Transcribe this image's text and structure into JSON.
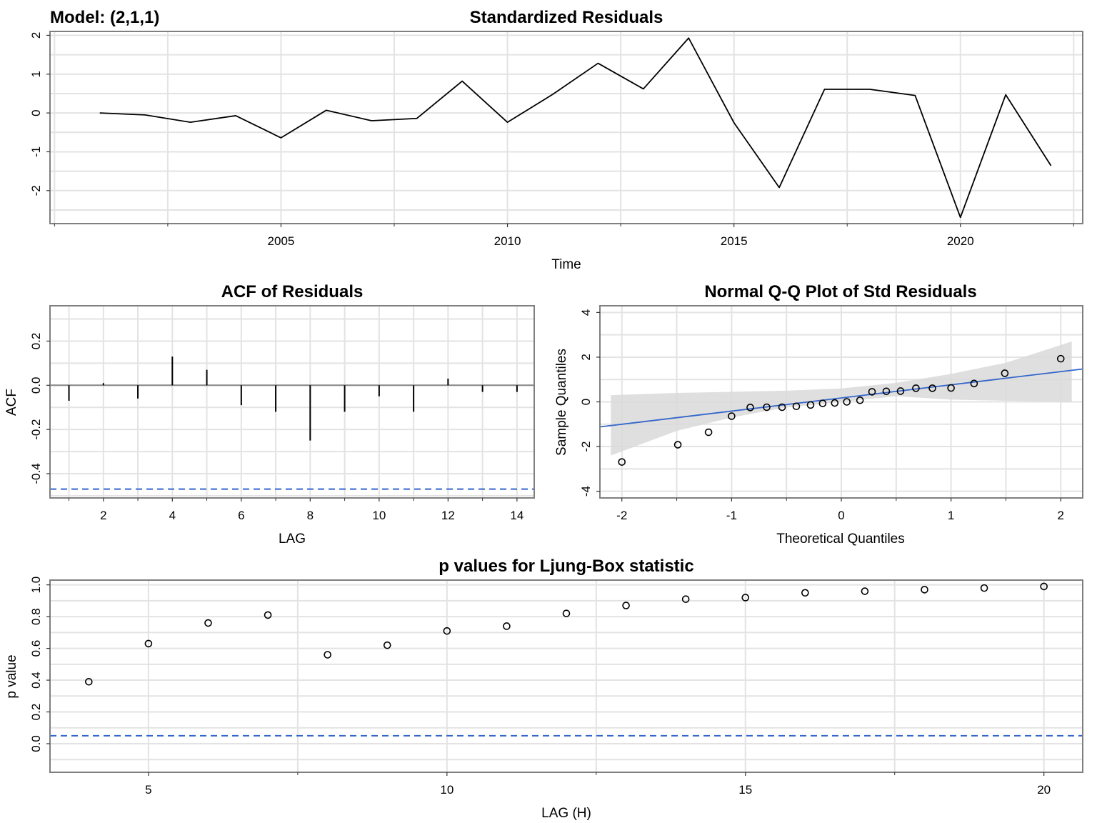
{
  "model_label": "Model: (2,1,1)",
  "chart_data": [
    {
      "type": "line",
      "title": "Standardized Residuals",
      "xlabel": "Time",
      "ylabel": "",
      "x": [
        2001,
        2002,
        2003,
        2004,
        2005,
        2006,
        2007,
        2008,
        2009,
        2010,
        2011,
        2012,
        2013,
        2014,
        2015,
        2016,
        2017,
        2018,
        2019,
        2020,
        2021,
        2022
      ],
      "series": [
        {
          "values": [
            0.0,
            -0.05,
            -0.24,
            -0.07,
            -0.64,
            0.07,
            -0.2,
            -0.14,
            0.82,
            -0.24,
            0.48,
            1.28,
            0.62,
            1.93,
            -0.25,
            -1.92,
            0.61,
            0.61,
            0.45,
            -2.69,
            0.47,
            -1.36
          ]
        }
      ],
      "xticks": [
        "2005",
        "2010",
        "2015",
        "2020"
      ],
      "yticks": [
        "-2",
        "-1",
        "0",
        "1",
        "2"
      ],
      "xlim": [
        1999.9,
        2022.7
      ],
      "ylim": [
        -2.85,
        2.1
      ],
      "grid": true,
      "line_color": "#000000"
    },
    {
      "type": "bar",
      "title": "ACF of Residuals",
      "xlabel": "LAG",
      "ylabel": "ACF",
      "x": [
        1,
        2,
        3,
        4,
        5,
        6,
        7,
        8,
        9,
        10,
        11,
        12,
        13,
        14
      ],
      "values": [
        -0.07,
        0.01,
        -0.06,
        0.13,
        0.07,
        -0.09,
        -0.12,
        -0.25,
        -0.12,
        -0.05,
        -0.12,
        0.03,
        -0.03,
        -0.03
      ],
      "xticks": [
        "2",
        "4",
        "6",
        "8",
        "10",
        "12",
        "14"
      ],
      "yticks": [
        "-0.4",
        "-0.2",
        "0.0",
        "0.2"
      ],
      "xlim": [
        0.45,
        14.5
      ],
      "ylim": [
        -0.51,
        0.36
      ],
      "significance_line": -0.47,
      "significance_color": "#3366cc",
      "grid": true
    },
    {
      "type": "scatter",
      "title": "Normal Q-Q Plot of Std Residuals",
      "xlabel": "Theoretical Quantiles",
      "ylabel": "Sample Quantiles",
      "points": [
        [
          -2.0,
          -2.69
        ],
        [
          -1.49,
          -1.92
        ],
        [
          -1.21,
          -1.36
        ],
        [
          -1.0,
          -0.64
        ],
        [
          -0.83,
          -0.25
        ],
        [
          -0.68,
          -0.24
        ],
        [
          -0.54,
          -0.24
        ],
        [
          -0.41,
          -0.2
        ],
        [
          -0.28,
          -0.14
        ],
        [
          -0.17,
          -0.07
        ],
        [
          -0.06,
          -0.05
        ],
        [
          0.05,
          0.0
        ],
        [
          0.17,
          0.07
        ],
        [
          0.28,
          0.45
        ],
        [
          0.41,
          0.47
        ],
        [
          0.54,
          0.48
        ],
        [
          0.68,
          0.61
        ],
        [
          0.83,
          0.61
        ],
        [
          1.0,
          0.62
        ],
        [
          1.21,
          0.82
        ],
        [
          1.49,
          1.28
        ],
        [
          2.0,
          1.93
        ]
      ],
      "fit_line": [
        [
          -2.2,
          -1.12
        ],
        [
          2.2,
          1.47
        ]
      ],
      "confidence_band_upper": [
        [
          -2.1,
          0.3
        ],
        [
          -1.5,
          0.4
        ],
        [
          -1.0,
          0.45
        ],
        [
          -0.5,
          0.5
        ],
        [
          0.0,
          0.6
        ],
        [
          0.5,
          0.85
        ],
        [
          1.0,
          1.25
        ],
        [
          1.5,
          1.75
        ],
        [
          2.1,
          2.7
        ]
      ],
      "confidence_band_lower": [
        [
          2.1,
          0.0
        ],
        [
          1.5,
          0.05
        ],
        [
          1.0,
          0.1
        ],
        [
          0.5,
          0.25
        ],
        [
          0.0,
          0.0
        ],
        [
          -0.5,
          -0.25
        ],
        [
          -1.0,
          -0.7
        ],
        [
          -1.5,
          -1.3
        ],
        [
          -2.1,
          -2.4
        ]
      ],
      "xticks": [
        "-2",
        "-1",
        "0",
        "1",
        "2"
      ],
      "yticks": [
        "-4",
        "-2",
        "0",
        "2",
        "4"
      ],
      "xlim": [
        -2.2,
        2.2
      ],
      "ylim": [
        -4.3,
        4.3
      ],
      "fit_color": "#3366cc",
      "band_color": "#d9d9d9",
      "grid": true
    },
    {
      "type": "scatter",
      "title": "p values for Ljung-Box statistic",
      "xlabel": "LAG (H)",
      "ylabel": "p value",
      "points": [
        [
          4,
          0.39
        ],
        [
          5,
          0.63
        ],
        [
          6,
          0.76
        ],
        [
          7,
          0.81
        ],
        [
          8,
          0.56
        ],
        [
          9,
          0.62
        ],
        [
          10,
          0.71
        ],
        [
          11,
          0.74
        ],
        [
          12,
          0.82
        ],
        [
          13,
          0.87
        ],
        [
          14,
          0.91
        ],
        [
          15,
          0.92
        ],
        [
          16,
          0.95
        ],
        [
          17,
          0.96
        ],
        [
          18,
          0.97
        ],
        [
          19,
          0.98
        ],
        [
          20,
          0.99
        ]
      ],
      "xticks": [
        "5",
        "10",
        "15",
        "20"
      ],
      "yticks": [
        "0.0",
        "0.2",
        "0.4",
        "0.6",
        "0.8",
        "1.0"
      ],
      "xlim": [
        3.35,
        20.65
      ],
      "ylim": [
        -0.18,
        1.03
      ],
      "reference_line": 0.05,
      "reference_color": "#3366cc",
      "grid": true
    }
  ]
}
